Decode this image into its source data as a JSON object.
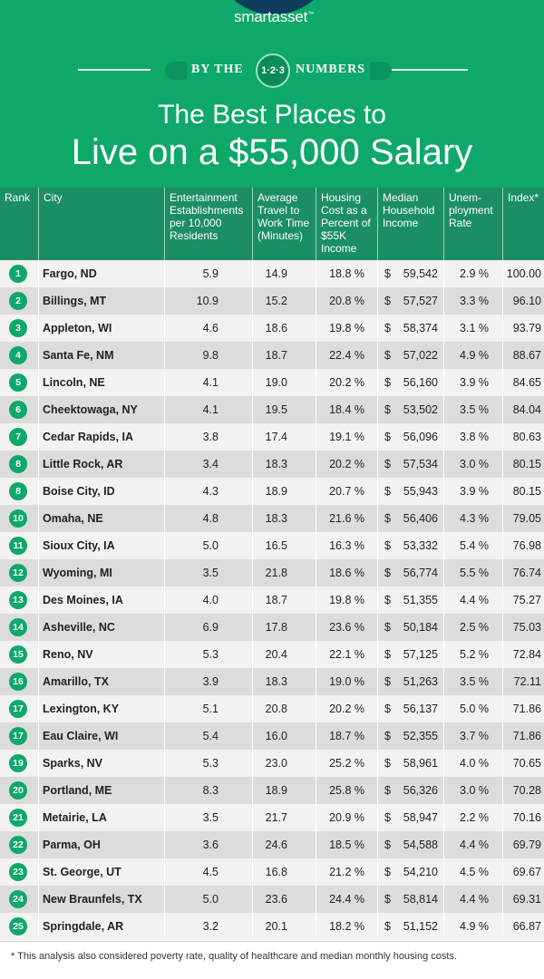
{
  "brand": {
    "logo_text": "smartasset",
    "logo_mark": "™",
    "arc_color": "#0f3b5c"
  },
  "banner": {
    "left": "BY THE",
    "middle": "1·2·3",
    "right": "NUMBERS"
  },
  "title": {
    "line1": "The Best Places to",
    "line2": "Live on a $55,000 Salary"
  },
  "colors": {
    "header_green": "#0ea86b",
    "table_header": "#1b8f63",
    "row_light": "#f2f2f2",
    "row_dark": "#dcdcdc"
  },
  "table": {
    "headers": {
      "rank": "Rank",
      "city": "City",
      "ent": "Entertainment Establishments per 10,000 Residents",
      "travel": "Average Travel to Work Time (Minutes)",
      "housing": "Housing Cost as a Percent of $55K Income",
      "income": "Median Household Income",
      "unemp": "Unem-ployment Rate",
      "index": "Index*"
    },
    "rows": [
      {
        "rank": "1",
        "city": "Fargo, ND",
        "ent": "5.9",
        "travel": "14.9",
        "housing": "18.8 %",
        "income": "59,542",
        "unemp": "2.9 %",
        "index": "100.00"
      },
      {
        "rank": "2",
        "city": "Billings, MT",
        "ent": "10.9",
        "travel": "15.2",
        "housing": "20.8 %",
        "income": "57,527",
        "unemp": "3.3 %",
        "index": "96.10"
      },
      {
        "rank": "3",
        "city": "Appleton, WI",
        "ent": "4.6",
        "travel": "18.6",
        "housing": "19.8 %",
        "income": "58,374",
        "unemp": "3.1 %",
        "index": "93.79"
      },
      {
        "rank": "4",
        "city": "Santa Fe, NM",
        "ent": "9.8",
        "travel": "18.7",
        "housing": "22.4 %",
        "income": "57,022",
        "unemp": "4.9 %",
        "index": "88.67"
      },
      {
        "rank": "5",
        "city": "Lincoln, NE",
        "ent": "4.1",
        "travel": "19.0",
        "housing": "20.2 %",
        "income": "56,160",
        "unemp": "3.9 %",
        "index": "84.65"
      },
      {
        "rank": "6",
        "city": "Cheektowaga, NY",
        "ent": "4.1",
        "travel": "19.5",
        "housing": "18.4 %",
        "income": "53,502",
        "unemp": "3.5 %",
        "index": "84.04"
      },
      {
        "rank": "7",
        "city": "Cedar Rapids, IA",
        "ent": "3.8",
        "travel": "17.4",
        "housing": "19.1 %",
        "income": "56,096",
        "unemp": "3.8 %",
        "index": "80.63"
      },
      {
        "rank": "8",
        "city": "Little Rock, AR",
        "ent": "3.4",
        "travel": "18.3",
        "housing": "20.2 %",
        "income": "57,534",
        "unemp": "3.0 %",
        "index": "80.15"
      },
      {
        "rank": "8",
        "city": "Boise City, ID",
        "ent": "4.3",
        "travel": "18.9",
        "housing": "20.7 %",
        "income": "55,943",
        "unemp": "3.9 %",
        "index": "80.15"
      },
      {
        "rank": "10",
        "city": "Omaha, NE",
        "ent": "4.8",
        "travel": "18.3",
        "housing": "21.6 %",
        "income": "56,406",
        "unemp": "4.3 %",
        "index": "79.05"
      },
      {
        "rank": "11",
        "city": "Sioux City, IA",
        "ent": "5.0",
        "travel": "16.5",
        "housing": "16.3 %",
        "income": "53,332",
        "unemp": "5.4 %",
        "index": "76.98"
      },
      {
        "rank": "12",
        "city": "Wyoming, MI",
        "ent": "3.5",
        "travel": "21.8",
        "housing": "18.6 %",
        "income": "56,774",
        "unemp": "5.5 %",
        "index": "76.74"
      },
      {
        "rank": "13",
        "city": "Des Moines, IA",
        "ent": "4.0",
        "travel": "18.7",
        "housing": "19.8 %",
        "income": "51,355",
        "unemp": "4.4 %",
        "index": "75.27"
      },
      {
        "rank": "14",
        "city": "Asheville, NC",
        "ent": "6.9",
        "travel": "17.8",
        "housing": "23.6 %",
        "income": "50,184",
        "unemp": "2.5 %",
        "index": "75.03"
      },
      {
        "rank": "15",
        "city": "Reno, NV",
        "ent": "5.3",
        "travel": "20.4",
        "housing": "22.1 %",
        "income": "57,125",
        "unemp": "5.2 %",
        "index": "72.84"
      },
      {
        "rank": "16",
        "city": "Amarillo, TX",
        "ent": "3.9",
        "travel": "18.3",
        "housing": "19.0 %",
        "income": "51,263",
        "unemp": "3.5 %",
        "index": "72.11"
      },
      {
        "rank": "17",
        "city": "Lexington, KY",
        "ent": "5.1",
        "travel": "20.8",
        "housing": "20.2 %",
        "income": "56,137",
        "unemp": "5.0 %",
        "index": "71.86"
      },
      {
        "rank": "17",
        "city": "Eau Claire, WI",
        "ent": "5.4",
        "travel": "16.0",
        "housing": "18.7 %",
        "income": "52,355",
        "unemp": "3.7 %",
        "index": "71.86"
      },
      {
        "rank": "19",
        "city": "Sparks, NV",
        "ent": "5.3",
        "travel": "23.0",
        "housing": "25.2 %",
        "income": "58,961",
        "unemp": "4.0 %",
        "index": "70.65"
      },
      {
        "rank": "20",
        "city": "Portland, ME",
        "ent": "8.3",
        "travel": "18.9",
        "housing": "25.8 %",
        "income": "56,326",
        "unemp": "3.0 %",
        "index": "70.28"
      },
      {
        "rank": "21",
        "city": "Metairie, LA",
        "ent": "3.5",
        "travel": "21.7",
        "housing": "20.9 %",
        "income": "58,947",
        "unemp": "2.2 %",
        "index": "70.16"
      },
      {
        "rank": "22",
        "city": "Parma, OH",
        "ent": "3.6",
        "travel": "24.6",
        "housing": "18.5 %",
        "income": "54,588",
        "unemp": "4.4 %",
        "index": "69.79"
      },
      {
        "rank": "23",
        "city": "St. George, UT",
        "ent": "4.5",
        "travel": "16.8",
        "housing": "21.2 %",
        "income": "54,210",
        "unemp": "4.5 %",
        "index": "69.67"
      },
      {
        "rank": "24",
        "city": "New Braunfels, TX",
        "ent": "5.0",
        "travel": "23.6",
        "housing": "24.4 %",
        "income": "58,814",
        "unemp": "4.4 %",
        "index": "69.31"
      },
      {
        "rank": "25",
        "city": "Springdale, AR",
        "ent": "3.2",
        "travel": "20.1",
        "housing": "18.2 %",
        "income": "51,152",
        "unemp": "4.9 %",
        "index": "66.87"
      }
    ],
    "currency_symbol": "$"
  },
  "footnote": "* This analysis also considered poverty rate, quality of healthcare and median monthly housing costs."
}
